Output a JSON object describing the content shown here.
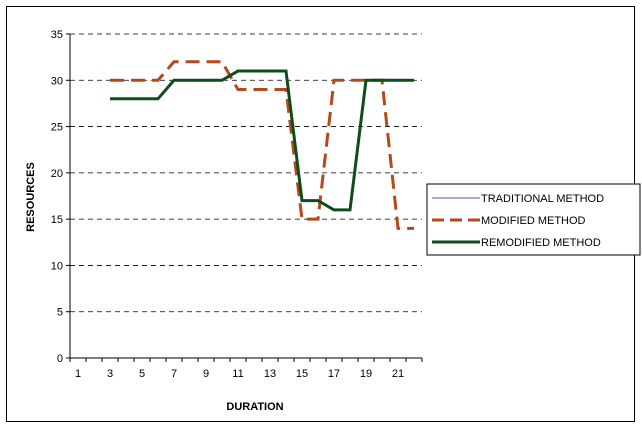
{
  "chart_data": {
    "type": "line",
    "title": "",
    "xlabel": "DURATION",
    "ylabel": "RESOURCES",
    "ylim": [
      0,
      35
    ],
    "yticks": [
      0,
      5,
      10,
      15,
      20,
      25,
      30,
      35
    ],
    "xlim": [
      1,
      22
    ],
    "xticks": [
      1,
      3,
      5,
      7,
      9,
      11,
      13,
      15,
      17,
      19,
      21
    ],
    "grid": "horizontal-dashed",
    "legend_position": "right",
    "series": [
      {
        "name": "TRADITIONAL METHOD",
        "color": "#4a54a8",
        "style": "thin",
        "points": []
      },
      {
        "name": "MODIFIED METHOD",
        "color": "#b5491a",
        "style": "dashed",
        "points": [
          [
            3,
            30
          ],
          [
            4,
            30
          ],
          [
            5,
            30
          ],
          [
            6,
            30
          ],
          [
            7,
            32
          ],
          [
            8,
            32
          ],
          [
            9,
            32
          ],
          [
            10,
            32
          ],
          [
            11,
            29
          ],
          [
            12,
            29
          ],
          [
            13,
            29
          ],
          [
            14,
            29
          ],
          [
            15,
            15
          ],
          [
            16,
            15
          ],
          [
            17,
            30
          ],
          [
            18,
            30
          ],
          [
            19,
            30
          ],
          [
            20,
            30
          ],
          [
            21,
            14
          ],
          [
            22,
            14
          ]
        ]
      },
      {
        "name": "REMODIFIED METHOD",
        "color": "#0d4d1a",
        "style": "solid-thick",
        "points": [
          [
            3,
            28
          ],
          [
            4,
            28
          ],
          [
            5,
            28
          ],
          [
            6,
            28
          ],
          [
            7,
            30
          ],
          [
            8,
            30
          ],
          [
            9,
            30
          ],
          [
            10,
            30
          ],
          [
            11,
            31
          ],
          [
            12,
            31
          ],
          [
            13,
            31
          ],
          [
            14,
            31
          ],
          [
            15,
            17
          ],
          [
            16,
            17
          ],
          [
            17,
            16
          ],
          [
            18,
            16
          ],
          [
            19,
            30
          ],
          [
            20,
            30
          ],
          [
            21,
            30
          ],
          [
            22,
            30
          ]
        ]
      }
    ]
  }
}
